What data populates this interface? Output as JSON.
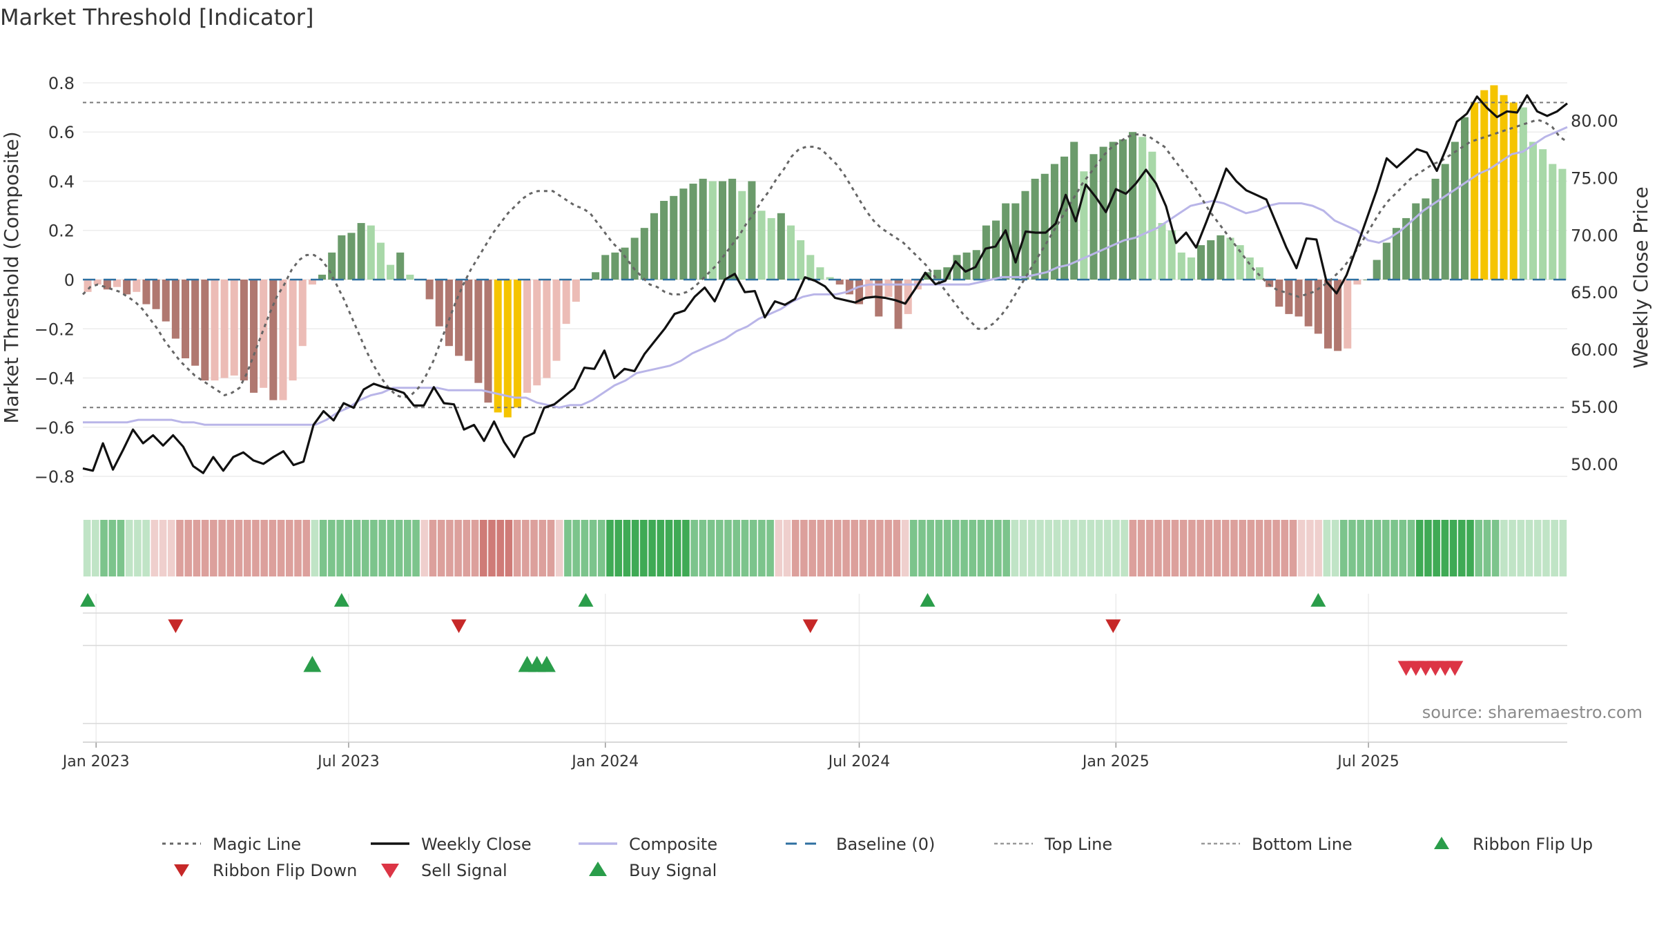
{
  "chart_data": {
    "type": "bar",
    "title": "Market Threshold [Indicator]",
    "ylabel": "Market Threshold (Composite)",
    "y2label": "Weekly Close Price",
    "source": "source: sharemaestro.com",
    "ylim": [
      -0.87,
      0.87
    ],
    "y2lim": [
      47.4,
      84.8
    ],
    "yticks": [
      0.8,
      0.6,
      0.4,
      0.2,
      0,
      -0.2,
      -0.4,
      -0.6,
      -0.8
    ],
    "ytick_labels": [
      "0.8",
      "0.6",
      "0.4",
      "0.2",
      "0",
      "−0.2",
      "−0.4",
      "−0.6",
      "−0.8"
    ],
    "y2ticks": [
      80,
      75,
      70,
      65,
      60,
      55,
      50
    ],
    "y2tick_labels": [
      "80.00",
      "75.00",
      "70.00",
      "65.00",
      "60.00",
      "55.00",
      "50.00"
    ],
    "xticks": [
      {
        "date": "2023-01-01",
        "label": "Jan 2023"
      },
      {
        "date": "2023-07-01",
        "label": "Jul 2023"
      },
      {
        "date": "2024-01-01",
        "label": "Jan 2024"
      },
      {
        "date": "2024-07-01",
        "label": "Jul 2024"
      },
      {
        "date": "2025-01-01",
        "label": "Jan 2025"
      },
      {
        "date": "2025-07-01",
        "label": "Jul 2025"
      }
    ],
    "x_start": "2022-12-26",
    "x_step_days": 7,
    "grid": true,
    "legend_position": "bottom",
    "top_line": 0.72,
    "bottom_line": -0.52,
    "series": [
      {
        "name": "Composite",
        "kind": "bars",
        "values": [
          -0.05,
          -0.02,
          -0.04,
          -0.03,
          -0.06,
          -0.05,
          -0.1,
          -0.12,
          -0.17,
          -0.24,
          -0.32,
          -0.35,
          -0.41,
          -0.41,
          -0.4,
          -0.39,
          -0.41,
          -0.46,
          -0.44,
          -0.49,
          -0.49,
          -0.41,
          -0.27,
          -0.02,
          0.02,
          0.11,
          0.18,
          0.19,
          0.23,
          0.22,
          0.15,
          0.06,
          0.11,
          0.02,
          0,
          -0.08,
          -0.19,
          -0.27,
          -0.31,
          -0.33,
          -0.42,
          -0.5,
          -0.54,
          -0.56,
          -0.52,
          -0.46,
          -0.43,
          -0.4,
          -0.33,
          -0.18,
          -0.09,
          0,
          0.03,
          0.1,
          0.11,
          0.13,
          0.17,
          0.21,
          0.27,
          0.32,
          0.34,
          0.37,
          0.39,
          0.41,
          0.4,
          0.4,
          0.41,
          0.36,
          0.4,
          0.28,
          0.25,
          0.27,
          0.22,
          0.16,
          0.1,
          0.05,
          0.01,
          -0.02,
          -0.06,
          -0.1,
          -0.07,
          -0.15,
          -0.07,
          -0.2,
          -0.14,
          -0.04,
          0.03,
          0.04,
          0.05,
          0.1,
          0.11,
          0.12,
          0.22,
          0.24,
          0.31,
          0.31,
          0.36,
          0.41,
          0.43,
          0.47,
          0.5,
          0.56,
          0.44,
          0.51,
          0.54,
          0.56,
          0.57,
          0.6,
          0.58,
          0.52,
          0.23,
          0.2,
          0.11,
          0.09,
          0.14,
          0.16,
          0.18,
          0.17,
          0.14,
          0.09,
          0.05,
          -0.03,
          -0.11,
          -0.14,
          -0.15,
          -0.19,
          -0.22,
          -0.28,
          -0.29,
          -0.28,
          -0.02,
          0,
          0.08,
          0.15,
          0.21,
          0.25,
          0.31,
          0.33,
          0.41,
          0.47,
          0.56,
          0.66,
          0.72,
          0.77,
          0.79,
          0.75,
          0.72,
          0.7,
          0.56,
          0.53,
          0.47,
          0.45
        ]
      },
      {
        "name": "Magic Line",
        "kind": "line",
        "values": [
          -0.06,
          -0.03,
          -0.02,
          -0.03,
          -0.04,
          -0.05,
          -0.07,
          -0.09,
          -0.12,
          -0.16,
          -0.2,
          -0.25,
          -0.29,
          -0.33,
          -0.36,
          -0.39,
          -0.41,
          -0.43,
          -0.45,
          -0.47,
          -0.46,
          -0.44,
          -0.38,
          -0.3,
          -0.22,
          -0.14,
          -0.07,
          -0.02,
          0.04,
          0.08,
          0.1,
          0.1,
          0.08,
          0.04,
          -0.02,
          -0.08,
          -0.15,
          -0.22,
          -0.29,
          -0.35,
          -0.4,
          -0.44,
          -0.47,
          -0.48,
          -0.47,
          -0.44,
          -0.39,
          -0.33,
          -0.25,
          -0.17,
          -0.09,
          -0.02,
          0.04,
          0.09,
          0.14,
          0.19,
          0.23,
          0.27,
          0.3,
          0.33,
          0.35,
          0.36,
          0.36,
          0.36,
          0.34,
          0.32,
          0.3,
          0.29,
          0.27,
          0.23,
          0.19,
          0.15,
          0.12,
          0.08,
          0.04,
          0.01,
          -0.02,
          -0.03,
          -0.05,
          -0.06,
          -0.06,
          -0.05,
          -0.03,
          0,
          0.03,
          0.06,
          0.1,
          0.14,
          0.18,
          0.23,
          0.27,
          0.32,
          0.36,
          0.41,
          0.45,
          0.5,
          0.53,
          0.54,
          0.54,
          0.53,
          0.5,
          0.47,
          0.43,
          0.38,
          0.33,
          0.28,
          0.24,
          0.21,
          0.19,
          0.17,
          0.15,
          0.12,
          0.09,
          0.06,
          0.02,
          -0.02,
          -0.06,
          -0.1,
          -0.14,
          -0.17,
          -0.2,
          -0.2,
          -0.18,
          -0.15,
          -0.11,
          -0.06,
          -0.01,
          0.04,
          0.09,
          0.14,
          0.19,
          0.24,
          0.29,
          0.34,
          0.39,
          0.43,
          0.47,
          0.51,
          0.54,
          0.56,
          0.58,
          0.59,
          0.59,
          0.58,
          0.56,
          0.54,
          0.5,
          0.46,
          0.42,
          0.38,
          0.33,
          0.28,
          0.24,
          0.2,
          0.16,
          0.12,
          0.08,
          0.04,
          0.01,
          -0.02,
          -0.04,
          -0.05,
          -0.06,
          -0.07,
          -0.06,
          -0.05,
          -0.03,
          -0.01,
          0.02,
          0.05,
          0.09,
          0.13,
          0.18,
          0.23,
          0.28,
          0.32,
          0.35,
          0.38,
          0.41,
          0.43,
          0.45,
          0.47,
          0.48,
          0.5,
          0.52,
          0.54,
          0.56,
          0.57,
          0.58,
          0.59,
          0.6,
          0.61,
          0.62,
          0.63,
          0.64,
          0.65,
          0.64,
          0.62,
          0.58,
          0.56
        ]
      },
      {
        "name": "Weekly Close",
        "kind": "line",
        "axis": "right",
        "values": [
          49.6,
          49.4,
          51.8,
          49.5,
          51.2,
          53,
          51.8,
          52.5,
          51.6,
          52.5,
          51.5,
          49.8,
          49.2,
          50.6,
          49.4,
          50.6,
          51,
          50.3,
          50,
          50.6,
          51.1,
          49.9,
          50.2,
          53.4,
          54.6,
          53.8,
          55.3,
          54.9,
          56.5,
          57,
          56.7,
          56.5,
          56.2,
          55.1,
          55.1,
          56.7,
          55.3,
          55.2,
          53,
          53.4,
          52,
          53.7,
          51.9,
          50.6,
          52.3,
          52.7,
          54.9,
          55.2,
          55.9,
          56.6,
          58.4,
          58.3,
          59.9,
          57.5,
          58.3,
          58.1,
          59.6,
          60.7,
          61.8,
          63.1,
          63.4,
          64.6,
          65.4,
          64.2,
          66.1,
          66.6,
          65,
          65.1,
          62.8,
          64.2,
          63.9,
          64.4,
          66.3,
          66,
          65.5,
          64.5,
          64.3,
          64.1,
          64.5,
          64.6,
          64.5,
          64.3,
          64,
          65.3,
          66.7,
          65.7,
          66,
          67.7,
          66.8,
          67.2,
          68.8,
          69,
          70.4,
          67.6,
          70.3,
          70.2,
          70.2,
          71,
          73.5,
          71.2,
          74.4,
          73.3,
          72,
          74,
          73.6,
          74.5,
          75.7,
          74.5,
          72.5,
          69.3,
          70.2,
          68.9,
          71.1,
          73.4,
          75.8,
          74.7,
          73.9,
          73.5,
          73.1,
          71,
          68.9,
          67.1,
          69.7,
          69.6,
          65.9,
          64.9,
          66.5,
          68.9,
          71.4,
          73.9,
          76.7,
          75.9,
          76.7,
          77.5,
          77.2,
          75.6,
          77.7,
          79.9,
          80.6,
          82.1,
          81.1,
          80.3,
          80.8,
          80.7,
          82.2,
          80.8,
          80.4,
          80.8,
          81.5
        ]
      },
      {
        "name": "Composite",
        "kind": "line",
        "values": [
          -0.58,
          -0.58,
          -0.58,
          -0.58,
          -0.58,
          -0.57,
          -0.57,
          -0.57,
          -0.57,
          -0.58,
          -0.58,
          -0.59,
          -0.59,
          -0.59,
          -0.59,
          -0.59,
          -0.59,
          -0.59,
          -0.59,
          -0.59,
          -0.59,
          -0.59,
          -0.57,
          -0.54,
          -0.52,
          -0.49,
          -0.47,
          -0.46,
          -0.44,
          -0.44,
          -0.44,
          -0.44,
          -0.44,
          -0.45,
          -0.45,
          -0.45,
          -0.45,
          -0.46,
          -0.47,
          -0.48,
          -0.48,
          -0.5,
          -0.51,
          -0.52,
          -0.51,
          -0.51,
          -0.49,
          -0.46,
          -0.43,
          -0.41,
          -0.38,
          -0.37,
          -0.36,
          -0.35,
          -0.33,
          -0.3,
          -0.28,
          -0.26,
          -0.24,
          -0.21,
          -0.19,
          -0.16,
          -0.14,
          -0.12,
          -0.09,
          -0.07,
          -0.06,
          -0.06,
          -0.06,
          -0.05,
          -0.03,
          -0.02,
          -0.02,
          -0.02,
          -0.02,
          -0.02,
          -0.02,
          -0.02,
          -0.02,
          -0.02,
          -0.02,
          -0.01,
          0,
          0.01,
          0.01,
          0.01,
          0.02,
          0.03,
          0.05,
          0.06,
          0.08,
          0.1,
          0.12,
          0.14,
          0.16,
          0.17,
          0.19,
          0.21,
          0.24,
          0.27,
          0.3,
          0.31,
          0.32,
          0.31,
          0.29,
          0.27,
          0.28,
          0.3,
          0.31,
          0.31,
          0.31,
          0.3,
          0.28,
          0.24,
          0.22,
          0.2,
          0.16,
          0.15,
          0.17,
          0.2,
          0.24,
          0.28,
          0.31,
          0.34,
          0.37,
          0.4,
          0.43,
          0.45,
          0.48,
          0.51,
          0.52,
          0.55,
          0.58,
          0.6,
          0.62
        ]
      }
    ],
    "ribbon": {
      "label": "Ribbon",
      "values": [
        "g-",
        "g-",
        "g",
        "g",
        "g",
        "g-",
        "g-",
        "g-",
        "r-",
        "r-",
        "r-",
        "r",
        "r",
        "r",
        "r",
        "r",
        "r",
        "r",
        "r",
        "r",
        "r",
        "r",
        "r",
        "r",
        "r",
        "r",
        "r",
        "g-",
        "g",
        "g",
        "g",
        "g",
        "g",
        "g",
        "g",
        "g",
        "g",
        "g",
        "g",
        "g",
        "r-",
        "r",
        "r",
        "r",
        "r",
        "r",
        "r",
        "r+",
        "r+",
        "r+",
        "r+",
        "r",
        "r",
        "r",
        "r",
        "r",
        "r-",
        "g",
        "g",
        "g",
        "g",
        "g",
        "g+",
        "g+",
        "g+",
        "g+",
        "g+",
        "g+",
        "g+",
        "g+",
        "g+",
        "g+",
        "g",
        "g",
        "g",
        "g",
        "g",
        "g",
        "g",
        "g",
        "g",
        "g",
        "r-",
        "r-",
        "r",
        "r",
        "r",
        "r",
        "r",
        "r",
        "r",
        "r",
        "r",
        "r",
        "r",
        "r",
        "r",
        "r-",
        "g",
        "g",
        "g",
        "g",
        "g",
        "g",
        "g",
        "g",
        "g",
        "g",
        "g",
        "g",
        "g-",
        "g-",
        "g-",
        "g-",
        "g-",
        "g-",
        "g-",
        "g-",
        "g-",
        "g-",
        "g-",
        "g-",
        "g-",
        "g-",
        "r",
        "r",
        "r",
        "r",
        "r",
        "r",
        "r",
        "r",
        "r",
        "r",
        "r",
        "r",
        "r",
        "r",
        "r",
        "r",
        "r",
        "r",
        "r",
        "r",
        "r-",
        "r-",
        "r-",
        "g-",
        "g-",
        "g",
        "g",
        "g",
        "g",
        "g",
        "g",
        "g",
        "g",
        "g",
        "g+",
        "g+",
        "g+",
        "g+",
        "g+",
        "g+",
        "g+",
        "g",
        "g",
        "g",
        "g-",
        "g-",
        "g-",
        "g-",
        "g-",
        "g-",
        "g-",
        "g-"
      ]
    },
    "markers": {
      "ribbon_flip_up": [
        "2022-12-26",
        "2023-06-26",
        "2023-12-18",
        "2024-08-19",
        "2025-05-26"
      ],
      "ribbon_flip_down": [
        "2023-02-27",
        "2023-09-18",
        "2024-05-27",
        "2024-12-30"
      ],
      "buy_signal": [
        "2023-06-05",
        "2023-11-06",
        "2023-11-13",
        "2023-11-20"
      ],
      "sell_signal": [
        "2025-07-28",
        "2025-08-04",
        "2025-08-11",
        "2025-08-18",
        "2025-08-25",
        "2025-09-01"
      ]
    },
    "legend": [
      {
        "label": "Magic Line",
        "key": "magic"
      },
      {
        "label": "Weekly Close",
        "key": "close"
      },
      {
        "label": "Composite",
        "key": "composite"
      },
      {
        "label": "Baseline (0)",
        "key": "baseline"
      },
      {
        "label": "Top Line",
        "key": "topline"
      },
      {
        "label": "Bottom Line",
        "key": "bottomline"
      },
      {
        "label": "Ribbon Flip Up",
        "key": "flipup"
      },
      {
        "label": "Ribbon Flip Down",
        "key": "flipdown"
      },
      {
        "label": "Sell Signal",
        "key": "sell"
      },
      {
        "label": "Buy Signal",
        "key": "buy"
      }
    ]
  },
  "colors": {
    "bar_green_dark": "#6b9b6b",
    "bar_green_light": "#a8d8a8",
    "bar_red_dark": "#b07870",
    "bar_red_light": "#ecbcb6",
    "bar_extreme": "#f5c400",
    "magic_line": "#666666",
    "weekly_close": "#111111",
    "composite_line": "#b9b5e8",
    "baseline": "#2e6fa0",
    "threshold_line": "#777777",
    "flip_up": "#2a9d4a",
    "flip_down": "#c62828",
    "sell": "#dc3545",
    "buy": "#2a9d4a"
  }
}
